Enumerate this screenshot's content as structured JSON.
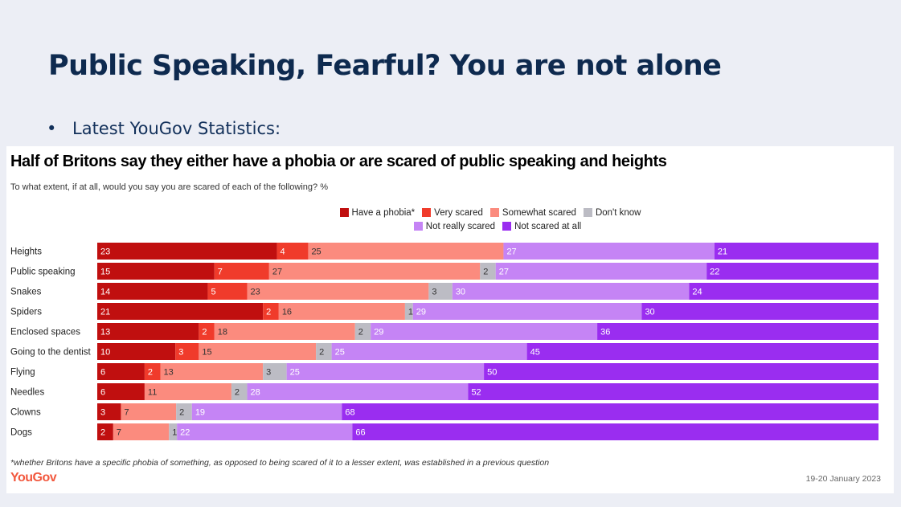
{
  "slide": {
    "title": "Public Speaking, Fearful? You are not alone",
    "bullet_marker": "•",
    "bullet": "Latest YouGov Statistics:"
  },
  "chart": {
    "footnote": "*whether Britons have a specific phobia of something, as opposed to being scared of it to a lesser extent, was established in a previous question",
    "brand": "YouGov",
    "date": "19-20 January 2023"
  },
  "chart_data": {
    "type": "bar",
    "orientation": "horizontal",
    "stacked": true,
    "title": "Half of Britons say they either have a phobia or are scared of public speaking and heights",
    "subtitle": "To what extent, if at all, would you say you are scared of each of the following? %",
    "xlim": [
      0,
      100
    ],
    "legend_position": "top-center",
    "categories": [
      "Heights",
      "Public speaking",
      "Snakes",
      "Spiders",
      "Enclosed spaces",
      "Going to the dentist",
      "Flying",
      "Needles",
      "Clowns",
      "Dogs"
    ],
    "series": [
      {
        "name": "Have a phobia*",
        "color": "#c00f0f",
        "label_color": "#ffffff",
        "values": [
          23,
          15,
          14,
          21,
          13,
          10,
          6,
          6,
          3,
          2
        ]
      },
      {
        "name": "Very scared",
        "color": "#f03b2b",
        "label_color": "#ffffff",
        "values": [
          4,
          7,
          5,
          2,
          2,
          3,
          2,
          null,
          null,
          null
        ]
      },
      {
        "name": "Somewhat scared",
        "color": "#fb8b7e",
        "label_color": "#333333",
        "values": [
          25,
          27,
          23,
          16,
          18,
          15,
          13,
          11,
          7,
          7
        ]
      },
      {
        "name": "Don't know",
        "color": "#bcbcc4",
        "label_color": "#333333",
        "values": [
          null,
          2,
          3,
          1,
          2,
          2,
          3,
          2,
          2,
          1
        ]
      },
      {
        "name": "Not really scared",
        "color": "#c584f5",
        "label_color": "#ffffff",
        "values": [
          27,
          27,
          30,
          29,
          29,
          25,
          25,
          28,
          19,
          22
        ]
      },
      {
        "name": "Not scared at all",
        "color": "#9a2df0",
        "label_color": "#ffffff",
        "values": [
          21,
          22,
          24,
          30,
          36,
          45,
          50,
          52,
          68,
          66
        ]
      }
    ]
  }
}
